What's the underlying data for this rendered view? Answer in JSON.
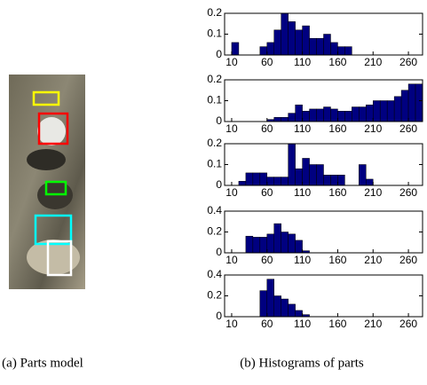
{
  "chart_data": [
    {
      "type": "histogram",
      "bins": [
        0,
        10,
        20,
        30,
        40,
        50,
        60,
        70,
        80,
        90,
        100,
        110,
        120,
        130,
        140,
        150,
        160,
        170,
        180,
        190,
        200,
        210,
        220,
        230,
        240,
        250,
        260,
        270,
        280
      ],
      "values": [
        0,
        0.06,
        0,
        0,
        0,
        0.04,
        0.06,
        0.12,
        0.2,
        0.16,
        0.12,
        0.14,
        0.08,
        0.08,
        0.1,
        0.06,
        0.04,
        0.04,
        0,
        0,
        0,
        0,
        0,
        0,
        0,
        0,
        0,
        0
      ],
      "color": "#000080",
      "xlim": [
        0,
        280
      ],
      "xticks": [
        10,
        60,
        110,
        160,
        210,
        260
      ],
      "ylim": [
        0,
        0.2
      ],
      "yticks": [
        0,
        0.1,
        0.2
      ]
    },
    {
      "type": "histogram",
      "bins": [
        0,
        10,
        20,
        30,
        40,
        50,
        60,
        70,
        80,
        90,
        100,
        110,
        120,
        130,
        140,
        150,
        160,
        170,
        180,
        190,
        200,
        210,
        220,
        230,
        240,
        250,
        260,
        270,
        280
      ],
      "values": [
        0,
        0,
        0,
        0,
        0,
        0,
        0.01,
        0.02,
        0.02,
        0.04,
        0.08,
        0.05,
        0.06,
        0.06,
        0.07,
        0.06,
        0.05,
        0.05,
        0.07,
        0.07,
        0.08,
        0.1,
        0.1,
        0.1,
        0.12,
        0.15,
        0.18,
        0.18
      ],
      "color": "#000080",
      "xlim": [
        0,
        280
      ],
      "xticks": [
        10,
        60,
        110,
        160,
        210,
        260
      ],
      "ylim": [
        0,
        0.2
      ],
      "yticks": [
        0,
        0.1,
        0.2
      ]
    },
    {
      "type": "histogram",
      "bins": [
        0,
        10,
        20,
        30,
        40,
        50,
        60,
        70,
        80,
        90,
        100,
        110,
        120,
        130,
        140,
        150,
        160,
        170,
        180,
        190,
        200,
        210,
        220,
        230,
        240,
        250,
        260,
        270,
        280
      ],
      "values": [
        0,
        0,
        0.02,
        0.06,
        0.06,
        0.06,
        0.04,
        0.04,
        0.04,
        0.2,
        0.08,
        0.13,
        0.1,
        0.1,
        0.05,
        0.05,
        0.05,
        0,
        0,
        0.1,
        0.03,
        0,
        0,
        0,
        0,
        0,
        0,
        0
      ],
      "color": "#000080",
      "xlim": [
        0,
        280
      ],
      "xticks": [
        10,
        60,
        110,
        160,
        210,
        260
      ],
      "ylim": [
        0,
        0.2
      ],
      "yticks": [
        0,
        0.1,
        0.2
      ]
    },
    {
      "type": "histogram",
      "bins": [
        0,
        10,
        20,
        30,
        40,
        50,
        60,
        70,
        80,
        90,
        100,
        110,
        120,
        130,
        140,
        150,
        160,
        170,
        180,
        190,
        200,
        210,
        220,
        230,
        240,
        250,
        260,
        270,
        280
      ],
      "values": [
        0,
        0,
        0,
        0.16,
        0.15,
        0.15,
        0.18,
        0.28,
        0.2,
        0.18,
        0.12,
        0.02,
        0,
        0,
        0,
        0,
        0,
        0,
        0,
        0,
        0,
        0,
        0,
        0,
        0,
        0,
        0,
        0
      ],
      "color": "#000080",
      "xlim": [
        0,
        280
      ],
      "xticks": [
        10,
        60,
        110,
        160,
        210,
        260
      ],
      "ylim": [
        0,
        0.4
      ],
      "yticks": [
        0,
        0.2,
        0.4
      ]
    },
    {
      "type": "histogram",
      "bins": [
        0,
        10,
        20,
        30,
        40,
        50,
        60,
        70,
        80,
        90,
        100,
        110,
        120,
        130,
        140,
        150,
        160,
        170,
        180,
        190,
        200,
        210,
        220,
        230,
        240,
        250,
        260,
        270,
        280
      ],
      "values": [
        0,
        0,
        0,
        0,
        0,
        0.25,
        0.36,
        0.2,
        0.17,
        0.12,
        0.06,
        0.02,
        0,
        0,
        0,
        0,
        0,
        0,
        0,
        0,
        0,
        0,
        0,
        0,
        0,
        0,
        0,
        0
      ],
      "color": "#000080",
      "xlim": [
        0,
        280
      ],
      "xticks": [
        10,
        60,
        110,
        160,
        210,
        260
      ],
      "ylim": [
        0,
        0.4
      ],
      "yticks": [
        0,
        0.2,
        0.4
      ]
    }
  ],
  "captions": [
    "(a) Parts model",
    "(b) Histograms of parts"
  ]
}
